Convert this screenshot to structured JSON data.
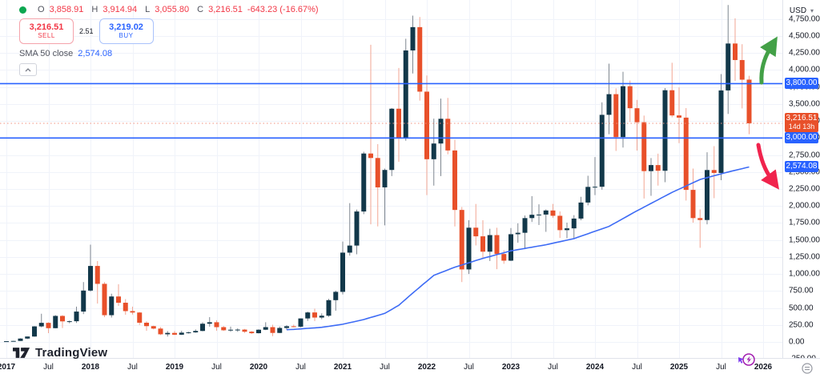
{
  "legend": {
    "ohlc": {
      "o_label": "O",
      "o": "3,858.91",
      "h_label": "H",
      "h": "3,914.94",
      "l_label": "L",
      "l": "3,055.80",
      "c_label": "C",
      "c": "3,216.51",
      "change": "-643.23 (-16.67%)"
    },
    "sell": {
      "price": "3,216.51",
      "label": "SELL"
    },
    "spread": "2.51",
    "buy": {
      "price": "3,219.02",
      "label": "BUY"
    },
    "indicator": {
      "name": "SMA 50 close",
      "value": "2,574.08"
    }
  },
  "price_axis": {
    "currency": "USD",
    "ticks": [
      "4,750.00",
      "4,500.00",
      "4,250.00",
      "4,000.00",
      "3,750.00",
      "3,500.00",
      "3,250.00",
      "3,000.00",
      "2,750.00",
      "2,500.00",
      "2,250.00",
      "2,000.00",
      "1,750.00",
      "1,500.00",
      "1,250.00",
      "1,000.00",
      "750.00",
      "500.00",
      "250.00",
      "0.00",
      "-250.00"
    ],
    "badges": [
      {
        "label": "3,800.00",
        "value": 3800,
        "kind": "level"
      },
      {
        "label": "3,216.51",
        "sub": "14d 13h",
        "value": 3216.51,
        "kind": "last-price"
      },
      {
        "label": "3,000.00",
        "value": 3000,
        "kind": "level"
      },
      {
        "label": "2,574.08",
        "value": 2574.08,
        "kind": "sma"
      }
    ]
  },
  "time_axis": {
    "labels": [
      {
        "text": "2017",
        "ym": "2017-01"
      },
      {
        "text": "Jul",
        "ym": "2017-07"
      },
      {
        "text": "2018",
        "ym": "2018-01"
      },
      {
        "text": "Jul",
        "ym": "2018-07"
      },
      {
        "text": "2019",
        "ym": "2019-01"
      },
      {
        "text": "Jul",
        "ym": "2019-07"
      },
      {
        "text": "2020",
        "ym": "2020-01"
      },
      {
        "text": "Jul",
        "ym": "2020-07"
      },
      {
        "text": "2021",
        "ym": "2021-01"
      },
      {
        "text": "Jul",
        "ym": "2021-07"
      },
      {
        "text": "2022",
        "ym": "2022-01"
      },
      {
        "text": "Jul",
        "ym": "2022-07"
      },
      {
        "text": "2023",
        "ym": "2023-01"
      },
      {
        "text": "Jul",
        "ym": "2023-07"
      },
      {
        "text": "2024",
        "ym": "2024-01"
      },
      {
        "text": "Jul",
        "ym": "2024-07"
      },
      {
        "text": "2025",
        "ym": "2025-01"
      },
      {
        "text": "Jul",
        "ym": "2025-07"
      },
      {
        "text": "2026",
        "ym": "2026-01"
      }
    ]
  },
  "watermark": {
    "text": "TradingView"
  },
  "colors": {
    "up_body": "#12384a",
    "up_wick": "#7f8790",
    "down_body": "#e8502a",
    "down_wick": "#f2a693",
    "level_line": "#2962ff",
    "sma_line": "#3d6bf5",
    "last_price_line": "#f0917f",
    "badge_blue": "#2962ff",
    "badge_orange": "#e8502a",
    "grid": "#f0f3fa",
    "axis_text": "#131722",
    "arrow_up": "#43a047",
    "arrow_down": "#f0234d",
    "quick_icon": "#a21caf",
    "sell_red": "#f23645",
    "buy_blue": "#2962ff"
  },
  "chart_data": {
    "type": "candlestick",
    "timeframe": "monthly",
    "x_start": "2017-01",
    "y_axis_range": [
      -250,
      4950
    ],
    "grid": true,
    "candles": [
      [
        "2017-01",
        8,
        11,
        8,
        11
      ],
      [
        "2017-02",
        11,
        16,
        10,
        15
      ],
      [
        "2017-03",
        15,
        55,
        15,
        50
      ],
      [
        "2017-04",
        50,
        80,
        42,
        80
      ],
      [
        "2017-05",
        80,
        233,
        76,
        229
      ],
      [
        "2017-06",
        229,
        415,
        215,
        281
      ],
      [
        "2017-07",
        281,
        290,
        130,
        203
      ],
      [
        "2017-08",
        203,
        395,
        200,
        383
      ],
      [
        "2017-09",
        383,
        395,
        205,
        303
      ],
      [
        "2017-10",
        303,
        315,
        275,
        305
      ],
      [
        "2017-11",
        305,
        520,
        280,
        447
      ],
      [
        "2017-12",
        447,
        881,
        410,
        756
      ],
      [
        "2018-01",
        756,
        1432,
        740,
        1118
      ],
      [
        "2018-02",
        1118,
        1190,
        565,
        855
      ],
      [
        "2018-03",
        855,
        880,
        365,
        394
      ],
      [
        "2018-04",
        394,
        710,
        360,
        669
      ],
      [
        "2018-05",
        669,
        850,
        530,
        577
      ],
      [
        "2018-06",
        577,
        630,
        400,
        454
      ],
      [
        "2018-07",
        454,
        520,
        403,
        433
      ],
      [
        "2018-08",
        433,
        440,
        250,
        283
      ],
      [
        "2018-09",
        283,
        305,
        165,
        233
      ],
      [
        "2018-10",
        233,
        240,
        185,
        197
      ],
      [
        "2018-11",
        197,
        220,
        102,
        113
      ],
      [
        "2018-12",
        113,
        160,
        80,
        133
      ],
      [
        "2019-01",
        133,
        160,
        100,
        107
      ],
      [
        "2019-02",
        107,
        165,
        102,
        137
      ],
      [
        "2019-03",
        137,
        150,
        123,
        141
      ],
      [
        "2019-04",
        141,
        185,
        135,
        162
      ],
      [
        "2019-05",
        162,
        290,
        158,
        268
      ],
      [
        "2019-06",
        268,
        365,
        225,
        290
      ],
      [
        "2019-07",
        290,
        320,
        165,
        218
      ],
      [
        "2019-08",
        218,
        235,
        162,
        172
      ],
      [
        "2019-09",
        172,
        225,
        150,
        180
      ],
      [
        "2019-10",
        180,
        200,
        150,
        182
      ],
      [
        "2019-11",
        182,
        192,
        132,
        151
      ],
      [
        "2019-12",
        151,
        160,
        116,
        129
      ],
      [
        "2020-01",
        129,
        185,
        125,
        180
      ],
      [
        "2020-02",
        180,
        290,
        175,
        218
      ],
      [
        "2020-03",
        218,
        253,
        86,
        133
      ],
      [
        "2020-04",
        133,
        228,
        130,
        206
      ],
      [
        "2020-05",
        206,
        248,
        180,
        231
      ],
      [
        "2020-06",
        231,
        255,
        215,
        225
      ],
      [
        "2020-07",
        225,
        348,
        215,
        346
      ],
      [
        "2020-08",
        346,
        447,
        310,
        434
      ],
      [
        "2020-09",
        434,
        490,
        308,
        359
      ],
      [
        "2020-10",
        359,
        420,
        335,
        386
      ],
      [
        "2020-11",
        386,
        635,
        370,
        615
      ],
      [
        "2020-12",
        615,
        755,
        460,
        737
      ],
      [
        "2021-01",
        737,
        1477,
        700,
        1314
      ],
      [
        "2021-02",
        1314,
        2042,
        1270,
        1418
      ],
      [
        "2021-03",
        1418,
        1947,
        1290,
        1919
      ],
      [
        "2021-04",
        1919,
        2798,
        1880,
        2772
      ],
      [
        "2021-05",
        2772,
        4372,
        1730,
        2706
      ],
      [
        "2021-06",
        2706,
        2910,
        1700,
        2274
      ],
      [
        "2021-07",
        2274,
        2550,
        1715,
        2530
      ],
      [
        "2021-08",
        2530,
        3440,
        2440,
        3431
      ],
      [
        "2021-09",
        3431,
        4030,
        2650,
        3001
      ],
      [
        "2021-10",
        3001,
        4460,
        2960,
        4288
      ],
      [
        "2021-11",
        4288,
        4800,
        3950,
        4631
      ],
      [
        "2021-12",
        4631,
        4780,
        3550,
        3682
      ],
      [
        "2022-01",
        3682,
        3920,
        2160,
        2688
      ],
      [
        "2022-02",
        2688,
        3285,
        2300,
        2919
      ],
      [
        "2022-03",
        2919,
        3580,
        2440,
        3283
      ],
      [
        "2022-04",
        3283,
        3590,
        2760,
        2817
      ],
      [
        "2022-05",
        2817,
        2975,
        1700,
        1942
      ],
      [
        "2022-06",
        1942,
        1985,
        881,
        1067
      ],
      [
        "2022-07",
        1067,
        1790,
        1000,
        1681
      ],
      [
        "2022-08",
        1681,
        2030,
        1420,
        1554
      ],
      [
        "2022-09",
        1554,
        1790,
        1220,
        1328
      ],
      [
        "2022-10",
        1328,
        1665,
        1190,
        1572
      ],
      [
        "2022-11",
        1572,
        1680,
        1070,
        1294
      ],
      [
        "2022-12",
        1294,
        1350,
        1150,
        1196
      ],
      [
        "2023-01",
        1196,
        1675,
        1190,
        1585
      ],
      [
        "2023-02",
        1585,
        1745,
        1460,
        1606
      ],
      [
        "2023-03",
        1606,
        1860,
        1365,
        1822
      ],
      [
        "2023-04",
        1822,
        2145,
        1765,
        1871
      ],
      [
        "2023-05",
        1871,
        2025,
        1720,
        1874
      ],
      [
        "2023-06",
        1874,
        1950,
        1620,
        1934
      ],
      [
        "2023-07",
        1934,
        2030,
        1825,
        1856
      ],
      [
        "2023-08",
        1856,
        1920,
        1530,
        1645
      ],
      [
        "2023-09",
        1645,
        1755,
        1525,
        1671
      ],
      [
        "2023-10",
        1671,
        1865,
        1520,
        1815
      ],
      [
        "2023-11",
        1815,
        2135,
        1790,
        2051
      ],
      [
        "2023-12",
        2051,
        2445,
        2010,
        2281
      ],
      [
        "2024-01",
        2281,
        2720,
        2160,
        2283
      ],
      [
        "2024-02",
        2283,
        3525,
        2240,
        3341
      ],
      [
        "2024-03",
        3341,
        4093,
        3055,
        3645
      ],
      [
        "2024-04",
        3645,
        3730,
        2810,
        3014
      ],
      [
        "2024-05",
        3014,
        3975,
        2860,
        3762
      ],
      [
        "2024-06",
        3762,
        3845,
        3235,
        3438
      ],
      [
        "2024-07",
        3438,
        3560,
        2815,
        3232
      ],
      [
        "2024-08",
        3232,
        3330,
        2110,
        2513
      ],
      [
        "2024-09",
        2513,
        2705,
        2150,
        2602
      ],
      [
        "2024-10",
        2602,
        2770,
        2300,
        2518
      ],
      [
        "2024-11",
        2518,
        3735,
        2350,
        3703
      ],
      [
        "2024-12",
        3703,
        4107,
        3305,
        3332
      ],
      [
        "2025-01",
        3332,
        3745,
        2925,
        3300
      ],
      [
        "2025-02",
        3300,
        3440,
        2080,
        2237
      ],
      [
        "2025-03",
        2237,
        2550,
        1755,
        1822
      ],
      [
        "2025-04",
        1822,
        1950,
        1385,
        1794
      ],
      [
        "2025-05",
        1794,
        2790,
        1730,
        2529
      ],
      [
        "2025-06",
        2529,
        2880,
        2115,
        2486
      ],
      [
        "2025-07",
        2486,
        3940,
        2380,
        3700
      ],
      [
        "2025-08",
        3700,
        4956,
        3355,
        4390
      ],
      [
        "2025-09",
        4390,
        4760,
        3840,
        4147
      ],
      [
        "2025-10",
        4147,
        4380,
        3435,
        3858
      ],
      [
        "2025-11",
        3858.91,
        3914.94,
        3055.8,
        3216.51
      ]
    ],
    "sma50": {
      "name": "SMA 50 close",
      "anchors": [
        [
          40,
          180
        ],
        [
          41,
          185
        ],
        [
          45,
          215
        ],
        [
          48,
          260
        ],
        [
          51,
          330
        ],
        [
          54,
          420
        ],
        [
          56,
          540
        ],
        [
          58,
          720
        ],
        [
          61,
          980
        ],
        [
          64,
          1100
        ],
        [
          68,
          1230
        ],
        [
          72,
          1340
        ],
        [
          77,
          1430
        ],
        [
          81,
          1520
        ],
        [
          86,
          1700
        ],
        [
          90,
          1930
        ],
        [
          95,
          2200
        ],
        [
          99,
          2390
        ],
        [
          103,
          2500
        ],
        [
          106,
          2574
        ]
      ]
    },
    "levels": [
      {
        "value": 3800,
        "label": "3,800.00"
      },
      {
        "value": 3000,
        "label": "3,000.00"
      }
    ],
    "last_price": {
      "value": 3216.51,
      "label": "3,216.51",
      "countdown": "14d 13h"
    },
    "sma_label": {
      "value": 2574.08,
      "label": "2,574.08"
    }
  }
}
